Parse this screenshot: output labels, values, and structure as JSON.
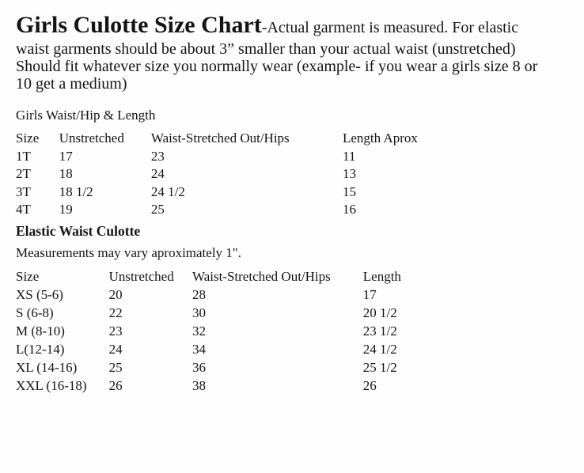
{
  "page": {
    "background_color": "#fefefe",
    "text_color": "#141414"
  },
  "intro": {
    "title": "Girls Culotte Size Chart",
    "subtitle_inline": "-Actual garment is measured. For elastic",
    "line2": "waist garments should be about 3” smaller than your actual waist (unstretched)",
    "line3": "Should fit whatever size you normally wear (example- if you wear a girls size 8 or",
    "line4": "10 get a medium)"
  },
  "toddler_section": {
    "caption": "Girls Waist/Hip & Length",
    "table": {
      "headers": [
        "Size",
        "Unstretched",
        "Waist-Stretched Out/Hips",
        "Length Aprox"
      ],
      "rows": [
        [
          "1T",
          "17",
          "23",
          "11"
        ],
        [
          "2T",
          "18",
          "24",
          "13"
        ],
        [
          "3T",
          "18 1/2",
          "24 1/2",
          "15"
        ],
        [
          "4T",
          "19",
          "25",
          "16"
        ]
      ]
    }
  },
  "elastic_section": {
    "heading": "Elastic Waist Culotte",
    "note": "Measurements may vary aproximately 1\".",
    "table": {
      "headers": [
        "Size",
        "Unstretched",
        "Waist-Stretched Out/Hips",
        "Length"
      ],
      "rows": [
        [
          "XS (5-6)",
          "20",
          "28",
          "17"
        ],
        [
          "S (6-8)",
          "22",
          "30",
          "20 1/2"
        ],
        [
          "M (8-10)",
          "23",
          "32",
          "23 1/2"
        ],
        [
          "L(12-14)",
          "24",
          "34",
          "24 1/2"
        ],
        [
          "XL (14-16)",
          "25",
          "36",
          "25 1/2"
        ],
        [
          "XXL (16-18)",
          "26",
          "38",
          "26"
        ]
      ]
    }
  }
}
